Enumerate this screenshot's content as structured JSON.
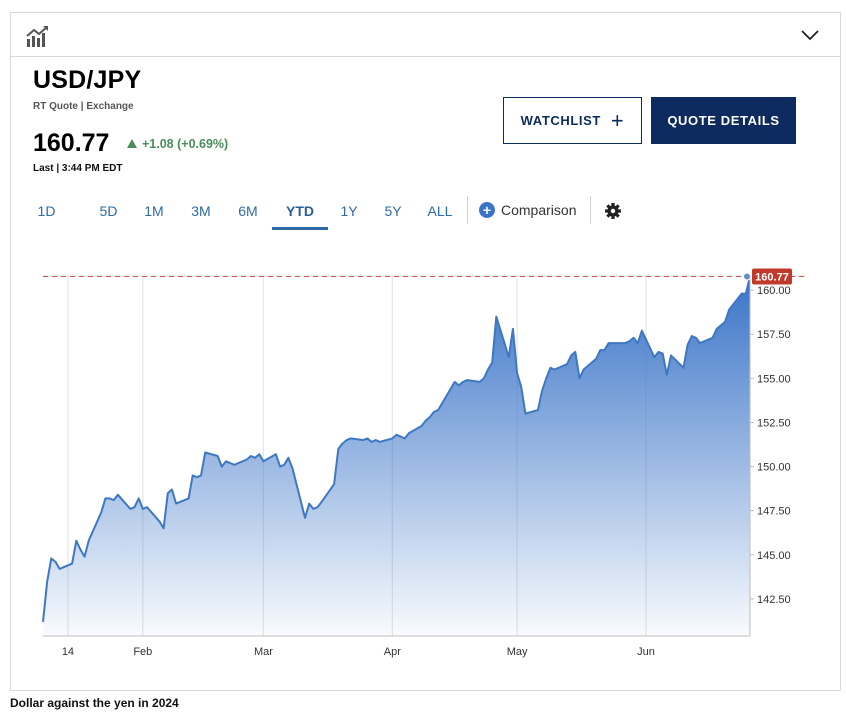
{
  "header": {
    "chart_icon": "bar-chart-trend-icon",
    "collapse_icon": "chevron-down-icon"
  },
  "quote": {
    "symbol": "USD/JPY",
    "quote_type": "RT Quote | Exchange",
    "last": "160.77",
    "change": "+1.08 (+0.69%)",
    "last_time": "Last | 3:44 PM EDT"
  },
  "actions": {
    "watchlist_label": "WATCHLIST",
    "watchlist_plus": "+",
    "quote_details_label": "QUOTE DETAILS"
  },
  "ranges": [
    {
      "label": "1D",
      "active": false
    },
    {
      "label": "5D",
      "active": false
    },
    {
      "label": "1M",
      "active": false
    },
    {
      "label": "3M",
      "active": false
    },
    {
      "label": "6M",
      "active": false
    },
    {
      "label": "YTD",
      "active": true
    },
    {
      "label": "1Y",
      "active": false
    },
    {
      "label": "5Y",
      "active": false
    },
    {
      "label": "ALL",
      "active": false
    }
  ],
  "comparison": {
    "label": "Comparison",
    "icon": "plus-circle-icon"
  },
  "settings_icon": "gear-icon",
  "colors": {
    "line": "#3e78c2",
    "fill_top": "#3a74c8",
    "fill_bottom": "#ffffff",
    "up": "#4a8d5a",
    "ref_line": "#d9534f",
    "badge": "#c0392b",
    "navy": "#0d2b5e"
  },
  "chart_data": {
    "type": "area",
    "title": "",
    "xlabel": "",
    "ylabel": "",
    "x_ticks": [
      "14",
      "Feb",
      "Mar",
      "Apr",
      "May",
      "Jun"
    ],
    "y_ticks": [
      "142.50",
      "145.00",
      "147.50",
      "150.00",
      "152.50",
      "155.00",
      "157.50",
      "160.00"
    ],
    "ylim": [
      140.4,
      160.8
    ],
    "last_value": 160.77,
    "last_label": "160.77",
    "reference_line": 160.77,
    "grid": true,
    "series": [
      {
        "x": [
          "2024-01-08",
          "2024-01-09",
          "2024-01-10",
          "2024-01-11",
          "2024-01-12",
          "2024-01-15",
          "2024-01-16",
          "2024-01-17",
          "2024-01-18",
          "2024-01-19",
          "2024-01-22",
          "2024-01-23",
          "2024-01-24",
          "2024-01-25",
          "2024-01-26",
          "2024-01-29",
          "2024-01-30",
          "2024-01-31",
          "2024-02-01",
          "2024-02-02",
          "2024-02-05",
          "2024-02-06",
          "2024-02-07",
          "2024-02-08",
          "2024-02-09",
          "2024-02-12",
          "2024-02-13",
          "2024-02-14",
          "2024-02-15",
          "2024-02-16",
          "2024-02-19",
          "2024-02-20",
          "2024-02-21",
          "2024-02-22",
          "2024-02-23",
          "2024-02-26",
          "2024-02-27",
          "2024-02-28",
          "2024-02-29",
          "2024-03-01",
          "2024-03-04",
          "2024-03-05",
          "2024-03-06",
          "2024-03-07",
          "2024-03-08",
          "2024-03-11",
          "2024-03-12",
          "2024-03-13",
          "2024-03-14",
          "2024-03-15",
          "2024-03-18",
          "2024-03-19",
          "2024-03-20",
          "2024-03-21",
          "2024-03-22",
          "2024-03-25",
          "2024-03-26",
          "2024-03-27",
          "2024-03-28",
          "2024-03-29",
          "2024-04-01",
          "2024-04-02",
          "2024-04-03",
          "2024-04-04",
          "2024-04-05",
          "2024-04-08",
          "2024-04-09",
          "2024-04-10",
          "2024-04-11",
          "2024-04-12",
          "2024-04-15",
          "2024-04-16",
          "2024-04-17",
          "2024-04-18",
          "2024-04-19",
          "2024-04-22",
          "2024-04-23",
          "2024-04-24",
          "2024-04-25",
          "2024-04-26",
          "2024-04-29",
          "2024-04-30",
          "2024-05-01",
          "2024-05-02",
          "2024-05-03",
          "2024-05-06",
          "2024-05-07",
          "2024-05-08",
          "2024-05-09",
          "2024-05-10",
          "2024-05-13",
          "2024-05-14",
          "2024-05-15",
          "2024-05-16",
          "2024-05-17",
          "2024-05-20",
          "2024-05-21",
          "2024-05-22",
          "2024-05-23",
          "2024-05-24",
          "2024-05-27",
          "2024-05-28",
          "2024-05-29",
          "2024-05-30",
          "2024-05-31",
          "2024-06-03",
          "2024-06-04",
          "2024-06-05",
          "2024-06-06",
          "2024-06-07",
          "2024-06-10",
          "2024-06-11",
          "2024-06-12",
          "2024-06-13",
          "2024-06-14",
          "2024-06-17",
          "2024-06-18",
          "2024-06-19",
          "2024-06-20",
          "2024-06-21",
          "2024-06-24",
          "2024-06-25",
          "2024-06-26"
        ],
        "values": [
          141.2,
          143.5,
          144.8,
          144.6,
          144.2,
          144.5,
          145.8,
          145.3,
          144.9,
          145.8,
          147.4,
          148.2,
          148.2,
          148.1,
          148.4,
          147.6,
          147.7,
          148.2,
          147.6,
          147.7,
          146.9,
          146.5,
          148.5,
          148.7,
          147.9,
          148.2,
          149.5,
          149.4,
          149.5,
          150.8,
          150.6,
          150.0,
          150.3,
          150.2,
          150.1,
          150.4,
          150.6,
          150.5,
          150.7,
          150.3,
          150.7,
          150.0,
          150.1,
          150.5,
          149.9,
          147.1,
          147.9,
          147.6,
          147.7,
          148.0,
          149.0,
          151.0,
          151.3,
          151.5,
          151.6,
          151.5,
          151.6,
          151.4,
          151.5,
          151.4,
          151.6,
          151.8,
          151.7,
          151.6,
          151.9,
          152.3,
          152.6,
          152.8,
          153.1,
          153.2,
          154.4,
          154.8,
          154.6,
          154.8,
          154.9,
          154.8,
          155.0,
          155.5,
          155.9,
          158.5,
          156.2,
          157.8,
          155.3,
          154.5,
          153.0,
          153.2,
          154.3,
          155.0,
          155.6,
          155.5,
          155.8,
          156.3,
          156.5,
          155.0,
          155.5,
          156.1,
          156.6,
          156.6,
          157.0,
          157.0,
          157.0,
          157.1,
          157.3,
          157.0,
          157.7,
          156.2,
          156.5,
          156.4,
          155.2,
          156.3,
          155.6,
          156.9,
          157.4,
          157.3,
          157.0,
          157.3,
          157.8,
          158.0,
          158.2,
          158.9,
          159.8,
          159.8,
          160.77
        ]
      }
    ]
  },
  "caption": "Dollar against the yen in 2024"
}
